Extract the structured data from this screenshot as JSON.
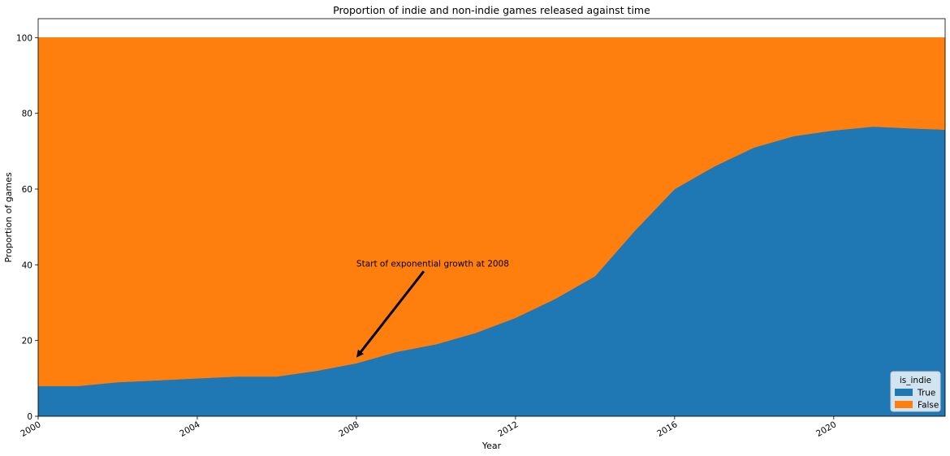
{
  "chart_data": {
    "type": "area",
    "stacked": true,
    "title": "Proportion of indie and non-indie games released against time",
    "xlabel": "Year",
    "ylabel": "Proportion of games",
    "xlim": [
      2000,
      2022.8
    ],
    "ylim": [
      0,
      105
    ],
    "x_ticks": [
      {
        "value": 2000,
        "label": "2000"
      },
      {
        "value": 2004,
        "label": "2004"
      },
      {
        "value": 2008,
        "label": "2008"
      },
      {
        "value": 2012,
        "label": "2012"
      },
      {
        "value": 2016,
        "label": "2016"
      },
      {
        "value": 2020,
        "label": "2020"
      }
    ],
    "y_ticks": [
      {
        "value": 0,
        "label": "0"
      },
      {
        "value": 20,
        "label": "20"
      },
      {
        "value": 40,
        "label": "40"
      },
      {
        "value": 60,
        "label": "60"
      },
      {
        "value": 80,
        "label": "80"
      },
      {
        "value": 100,
        "label": "100"
      }
    ],
    "x": [
      2000,
      2001,
      2002,
      2003,
      2004,
      2005,
      2006,
      2007,
      2008,
      2009,
      2010,
      2011,
      2012,
      2013,
      2014,
      2015,
      2016,
      2017,
      2018,
      2019,
      2020,
      2021,
      2022,
      2022.8
    ],
    "series": [
      {
        "name": "True",
        "color": "#1f77b4",
        "values": [
          8,
          8,
          9,
          9.5,
          10,
          10.5,
          10.5,
          12,
          14,
          17,
          19,
          22,
          26,
          31,
          37,
          49,
          60,
          66,
          71,
          74,
          75.5,
          76.5,
          76,
          75.7
        ]
      },
      {
        "name": "False",
        "color": "#ff7f0e",
        "values": [
          92,
          92,
          91,
          90.5,
          90,
          89.5,
          89.5,
          88,
          86,
          83,
          81,
          78,
          74,
          69,
          63,
          51,
          40,
          34,
          29,
          26,
          24.5,
          23.5,
          24,
          24.3
        ]
      }
    ],
    "legend": {
      "title": "is_indie",
      "position": "bottom-right"
    },
    "annotation": {
      "text": "Start of exponential growth at 2008",
      "xy": [
        2008,
        15.5
      ],
      "text_xy": [
        2008,
        40
      ]
    },
    "grid": false
  }
}
